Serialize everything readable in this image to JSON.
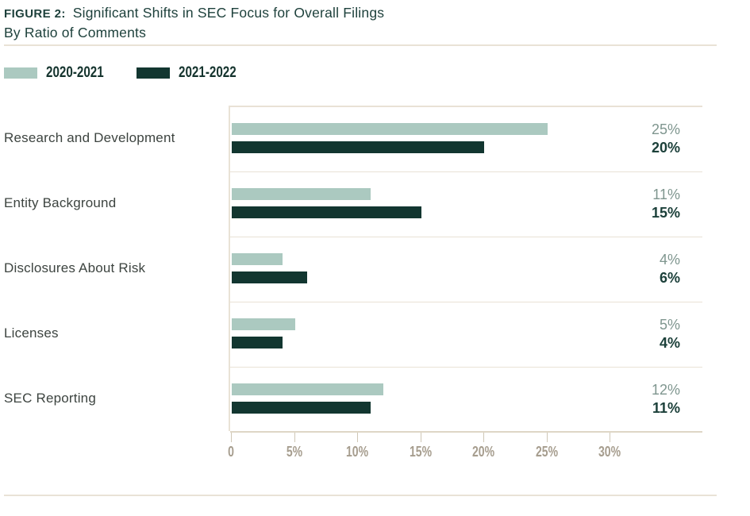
{
  "figure": {
    "label": "FIGURE 2:",
    "title": "Significant Shifts in SEC Focus for Overall Filings",
    "subtitle": "By Ratio of Comments"
  },
  "legend": [
    {
      "label": "2020-2021",
      "color": "#abc9c0"
    },
    {
      "label": "2021-2022",
      "color": "#123630"
    }
  ],
  "chart_data": {
    "type": "bar",
    "orientation": "horizontal",
    "title": "Significant Shifts in SEC Focus for Overall Filings",
    "subtitle": "By Ratio of Comments",
    "categories": [
      "Research and Development",
      "Entity Background",
      "Disclosures About Risk",
      "Licenses",
      "SEC Reporting"
    ],
    "series": [
      {
        "name": "2020-2021",
        "color": "#abc9c0",
        "values": [
          25,
          11,
          4,
          5,
          12
        ],
        "labels": [
          "25%",
          "11%",
          "4%",
          "5%",
          "12%"
        ]
      },
      {
        "name": "2021-2022",
        "color": "#123630",
        "values": [
          20,
          15,
          6,
          4,
          11
        ],
        "labels": [
          "20%",
          "15%",
          "6%",
          "4%",
          "11%"
        ]
      }
    ],
    "x_ticks": [
      "0",
      "5%",
      "10%",
      "15%",
      "20%",
      "25%",
      "30%"
    ],
    "x_tick_values": [
      0,
      5,
      10,
      15,
      20,
      25,
      30
    ],
    "xlim": [
      0,
      37.4
    ],
    "unit": "%",
    "grid": false,
    "legend_position": "top-left"
  },
  "colors": {
    "title_text": "#1e413c",
    "category_text": "#3d4440",
    "value_text_2020_2021": "#7f968f",
    "value_text_2021_2022": "#1c403a",
    "axis_text": "#a69d8e",
    "rule_line": "#e9e2d6",
    "background": "#ffffff"
  }
}
